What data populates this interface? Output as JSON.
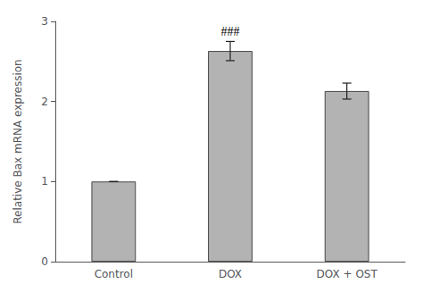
{
  "chart_data": {
    "type": "bar",
    "categories": [
      "Control",
      "DOX",
      "DOX + OST"
    ],
    "values": [
      1.0,
      2.63,
      2.13
    ],
    "errors": [
      0.0,
      0.12,
      0.1
    ],
    "color": "#b3b3b3",
    "ylabel": "Relative Bax mRNA expression",
    "ylim": [
      0,
      3
    ],
    "yticks": [
      0,
      1,
      2,
      3
    ],
    "grid": false,
    "annotations": [
      {
        "text": "###",
        "category": "DOX"
      }
    ]
  }
}
